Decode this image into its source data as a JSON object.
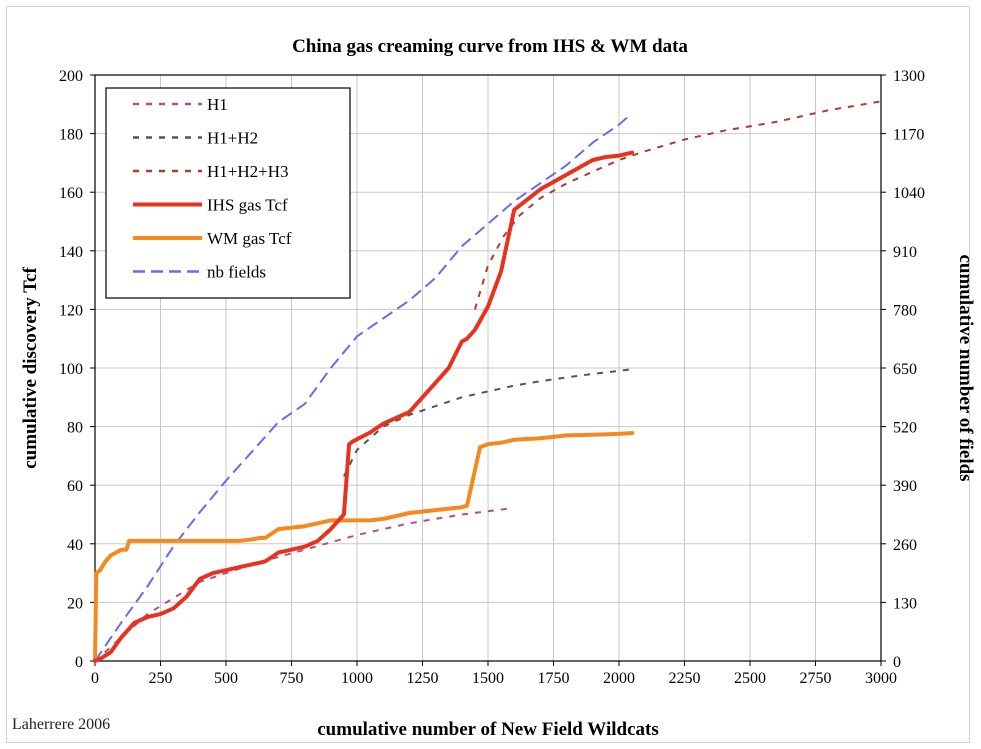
{
  "chart_data": {
    "type": "line",
    "title": "China gas creaming curve from IHS & WM data",
    "xlabel": "cumulative number of New Field Wildcats",
    "ylabel": "cumulative discovery Tcf",
    "y2label": "cumulative number of fields",
    "xlim": [
      0,
      3000
    ],
    "ylim": [
      0,
      200
    ],
    "y2lim": [
      0,
      1300
    ],
    "xticks": [
      0,
      250,
      500,
      750,
      1000,
      1250,
      1500,
      1750,
      2000,
      2250,
      2500,
      2750,
      3000
    ],
    "yticks": [
      0,
      20,
      40,
      60,
      80,
      100,
      120,
      140,
      160,
      180,
      200
    ],
    "y2ticks": [
      0,
      130,
      260,
      390,
      520,
      650,
      780,
      910,
      1040,
      1170,
      1300
    ],
    "grid": true,
    "legend_position": "top-left",
    "series": [
      {
        "name": "H1",
        "axis": "left",
        "color": "#b0508a",
        "dash": "short",
        "x": [
          0,
          200,
          400,
          600,
          800,
          1000,
          1200,
          1400,
          1580
        ],
        "y": [
          0,
          16,
          27,
          33,
          38,
          43,
          47,
          50,
          52
        ]
      },
      {
        "name": "H1+H2",
        "axis": "left",
        "color": "#555555",
        "dash": "short",
        "x": [
          950,
          1000,
          1100,
          1200,
          1300,
          1400,
          1500,
          1600,
          1700,
          1800,
          1900,
          2000,
          2040
        ],
        "y": [
          63,
          72,
          80,
          84,
          87,
          90,
          92,
          94,
          95.5,
          96.8,
          98,
          99,
          99.5
        ]
      },
      {
        "name": "H1+H2+H3",
        "axis": "left",
        "color": "#b03a2e",
        "dash": "short",
        "x": [
          1450,
          1500,
          1560,
          1620,
          1700,
          1800,
          1900,
          2000,
          2100,
          2250,
          2400,
          2600,
          2800,
          3000
        ],
        "y": [
          120,
          135,
          145,
          152,
          158,
          163,
          167,
          171,
          174,
          178,
          181,
          184,
          188,
          191
        ]
      },
      {
        "name": "IHS gas Tcf",
        "axis": "left",
        "color": "#e8321e",
        "dash": "solid",
        "width": 4,
        "x": [
          0,
          25,
          60,
          100,
          150,
          200,
          250,
          300,
          350,
          400,
          450,
          500,
          550,
          600,
          650,
          700,
          750,
          800,
          850,
          900,
          950,
          970,
          985,
          1050,
          1100,
          1150,
          1200,
          1250,
          1300,
          1350,
          1400,
          1420,
          1450,
          1500,
          1550,
          1600,
          1700,
          1800,
          1900,
          1950,
          2000,
          2050
        ],
        "y": [
          0,
          1,
          3,
          8,
          13,
          15,
          16,
          18,
          22,
          28,
          30,
          31,
          32,
          33,
          34,
          37,
          38,
          39,
          41,
          45,
          50,
          74,
          75,
          78,
          81,
          83,
          85,
          90,
          95,
          100,
          109,
          110,
          113,
          121,
          133,
          154,
          161,
          166,
          171,
          172,
          172.5,
          173.5
        ]
      },
      {
        "name": "WM gas Tcf",
        "axis": "left",
        "color": "#f5891e",
        "dash": "solid",
        "width": 4,
        "x": [
          0,
          5,
          20,
          40,
          60,
          80,
          100,
          120,
          130,
          200,
          300,
          400,
          500,
          550,
          600,
          630,
          650,
          700,
          800,
          850,
          900,
          1000,
          1050,
          1100,
          1150,
          1200,
          1300,
          1400,
          1420,
          1470,
          1500,
          1550,
          1600,
          1700,
          1750,
          1800,
          1900,
          2000,
          2050
        ],
        "y": [
          0,
          30,
          31,
          34,
          36,
          37,
          38,
          38,
          41,
          41,
          41,
          41,
          41,
          41,
          41.5,
          42,
          42,
          45,
          46,
          47,
          48,
          48,
          48,
          48.5,
          49.5,
          50.5,
          51.5,
          52.5,
          53,
          73,
          74,
          74.5,
          75.5,
          76,
          76.5,
          77,
          77.2,
          77.5,
          77.8
        ]
      },
      {
        "name": "nb fields",
        "axis": "right",
        "color": "#6a6af0",
        "dash": "long",
        "x": [
          0,
          100,
          200,
          300,
          400,
          500,
          600,
          700,
          800,
          900,
          1000,
          1100,
          1200,
          1300,
          1400,
          1500,
          1600,
          1700,
          1800,
          1900,
          2000,
          2040
        ],
        "y": [
          0,
          85,
          165,
          255,
          330,
          400,
          465,
          530,
          570,
          650,
          720,
          760,
          800,
          850,
          920,
          970,
          1020,
          1060,
          1100,
          1150,
          1190,
          1210
        ]
      }
    ],
    "credit": "Laherrere 2006"
  }
}
